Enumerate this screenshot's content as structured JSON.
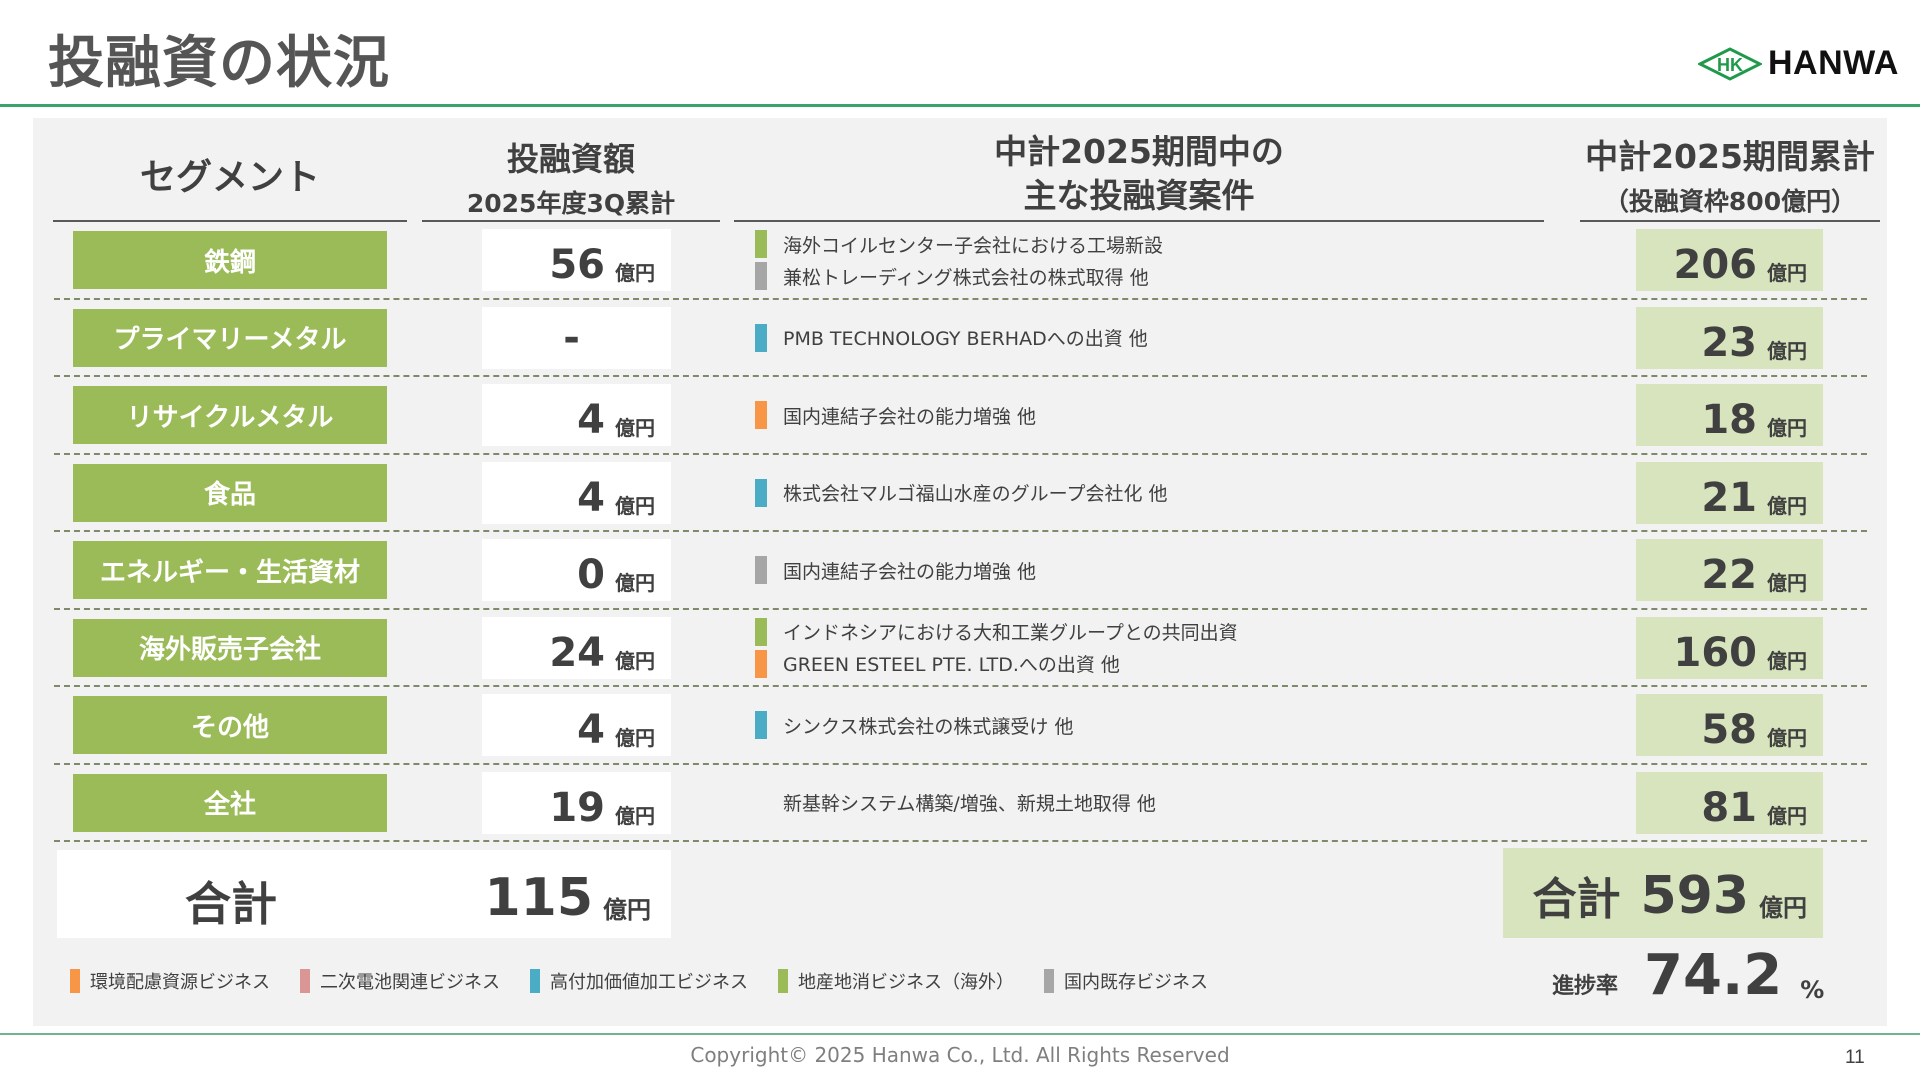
{
  "header": {
    "title": "投融資の状況",
    "logo": {
      "mark": "HK",
      "text": "HANWA"
    }
  },
  "columns": {
    "segment": "セグメント",
    "amount_title": "投融資額",
    "amount_sub": "2025年度3Q累計",
    "cases_line1": "中計2025期間中の",
    "cases_line2": "主な投融資案件",
    "cumulative_title": "中計2025期間累計",
    "cumulative_sub": "（投融資枠800億円）"
  },
  "unit": "億円",
  "colors": {
    "env": "#f79646",
    "battery": "#d99694",
    "highvalue": "#4bacc6",
    "local": "#9bbb59",
    "domestic": "#a6a6a6",
    "segment_bg": "#9bbb59",
    "cumulative_bg": "#d7e4bd",
    "accent_line": "#3aa46a"
  },
  "rows": [
    {
      "segment": "鉄鋼",
      "amount": "56",
      "amount_unit": "億円",
      "cases": [
        {
          "text": "海外コイルセンター子会社における工場新設",
          "category": "local"
        },
        {
          "text": "兼松トレーディング株式会社の株式取得 他",
          "category": "domestic"
        }
      ],
      "cumulative": "206",
      "cumulative_unit": "億円"
    },
    {
      "segment": "プライマリーメタル",
      "amount": "-",
      "amount_unit": "",
      "cases": [
        {
          "text": "PMB TECHNOLOGY BERHADへの出資 他",
          "category": "highvalue"
        }
      ],
      "cumulative": "23",
      "cumulative_unit": "億円"
    },
    {
      "segment": "リサイクルメタル",
      "amount": "4",
      "amount_unit": "億円",
      "cases": [
        {
          "text": "国内連結子会社の能力増強 他",
          "category": "env"
        }
      ],
      "cumulative": "18",
      "cumulative_unit": "億円"
    },
    {
      "segment": "食品",
      "amount": "4",
      "amount_unit": "億円",
      "cases": [
        {
          "text": "株式会社マルゴ福山水産のグループ会社化 他",
          "category": "highvalue"
        }
      ],
      "cumulative": "21",
      "cumulative_unit": "億円"
    },
    {
      "segment": "エネルギー・生活資材",
      "amount": "0",
      "amount_unit": "億円",
      "cases": [
        {
          "text": "国内連結子会社の能力増強 他",
          "category": "domestic"
        }
      ],
      "cumulative": "22",
      "cumulative_unit": "億円"
    },
    {
      "segment": "海外販売子会社",
      "amount": "24",
      "amount_unit": "億円",
      "cases": [
        {
          "text": "インドネシアにおける大和工業グループとの共同出資",
          "category": "local"
        },
        {
          "text": "GREEN ESTEEL PTE. LTD.への出資 他",
          "category": "env"
        }
      ],
      "cumulative": "160",
      "cumulative_unit": "億円"
    },
    {
      "segment": "その他",
      "amount": "4",
      "amount_unit": "億円",
      "cases": [
        {
          "text": "シンクス株式会社の株式譲受け 他",
          "category": "highvalue"
        }
      ],
      "cumulative": "58",
      "cumulative_unit": "億円"
    },
    {
      "segment": "全社",
      "amount": "19",
      "amount_unit": "億円",
      "cases": [
        {
          "text": "新基幹システム構築/増強、新規土地取得 他",
          "category": "none"
        }
      ],
      "cumulative": "81",
      "cumulative_unit": "億円"
    }
  ],
  "totals": {
    "label": "合計",
    "amount": "115",
    "amount_unit": "億円",
    "cumulative": "593",
    "cumulative_unit": "億円",
    "progress_label": "進捗率",
    "progress_value": "74.2",
    "progress_unit": "%"
  },
  "legend": [
    {
      "label": "環境配慮資源ビジネス",
      "category": "env"
    },
    {
      "label": "二次電池関連ビジネス",
      "category": "battery"
    },
    {
      "label": "高付加価値加工ビジネス",
      "category": "highvalue"
    },
    {
      "label": "地産地消ビジネス（海外）",
      "category": "local"
    },
    {
      "label": "国内既存ビジネス",
      "category": "domestic"
    }
  ],
  "footer": {
    "copyright": "Copyright© 2025 Hanwa Co., Ltd. All Rights Reserved",
    "page": "11"
  }
}
